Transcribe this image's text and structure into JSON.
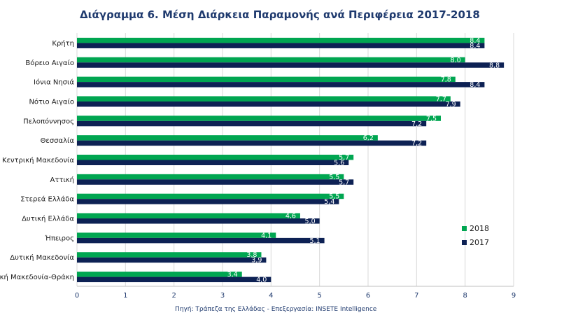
{
  "chart_data": {
    "type": "bar",
    "orientation": "horizontal",
    "title": "Διάγραμμα 6. Μέση Διάρκεια Παραμονής ανά Περιφέρεια 2017-2018",
    "categories": [
      "Κρήτη",
      "Βόρειο Αιγαίο",
      "Ιόνια Νησιά",
      "Νότιο Αιγαίο",
      "Πελοπόννησος",
      "Θεσσαλία",
      "Κεντρική Μακεδονία",
      "Αττική",
      "Στερεά Ελλάδα",
      "Δυτική Ελλάδα",
      "Ήπειρος",
      "Δυτική Μακεδονία",
      "κή Μακεδονία-Θράκη"
    ],
    "series": [
      {
        "name": "2018",
        "color": "#00a651",
        "values": [
          8.4,
          8.0,
          7.8,
          7.7,
          7.5,
          6.2,
          5.7,
          5.5,
          5.5,
          4.6,
          4.1,
          3.8,
          3.4
        ],
        "labels": [
          "8,4",
          "8,0",
          "7,8",
          "7,7",
          "7,5",
          "6,2",
          "5,7",
          "5,5",
          "5,5",
          "4,6",
          "4,1",
          "3,8",
          "3,4"
        ]
      },
      {
        "name": "2017",
        "color": "#0d2154",
        "values": [
          8.4,
          8.8,
          8.4,
          7.9,
          7.2,
          7.2,
          5.6,
          5.7,
          5.4,
          5.0,
          5.1,
          3.9,
          4.0
        ],
        "labels": [
          "8,4",
          "8,8",
          "8,4",
          "7,9",
          "7,2",
          "7,2",
          "5,6",
          "5,7",
          "5,4",
          "5,0",
          "5,1",
          "3,9",
          "4,0"
        ]
      }
    ],
    "xlim": [
      0,
      9
    ],
    "xticks": [
      "0",
      "1",
      "2",
      "3",
      "4",
      "5",
      "6",
      "7",
      "8",
      "9"
    ],
    "grid": true,
    "legend_position": "bottom-right"
  },
  "source_note": "Πηγή: Τράπεζα της Ελλάδας - Επεξεργασία: INSETE Intelligence"
}
